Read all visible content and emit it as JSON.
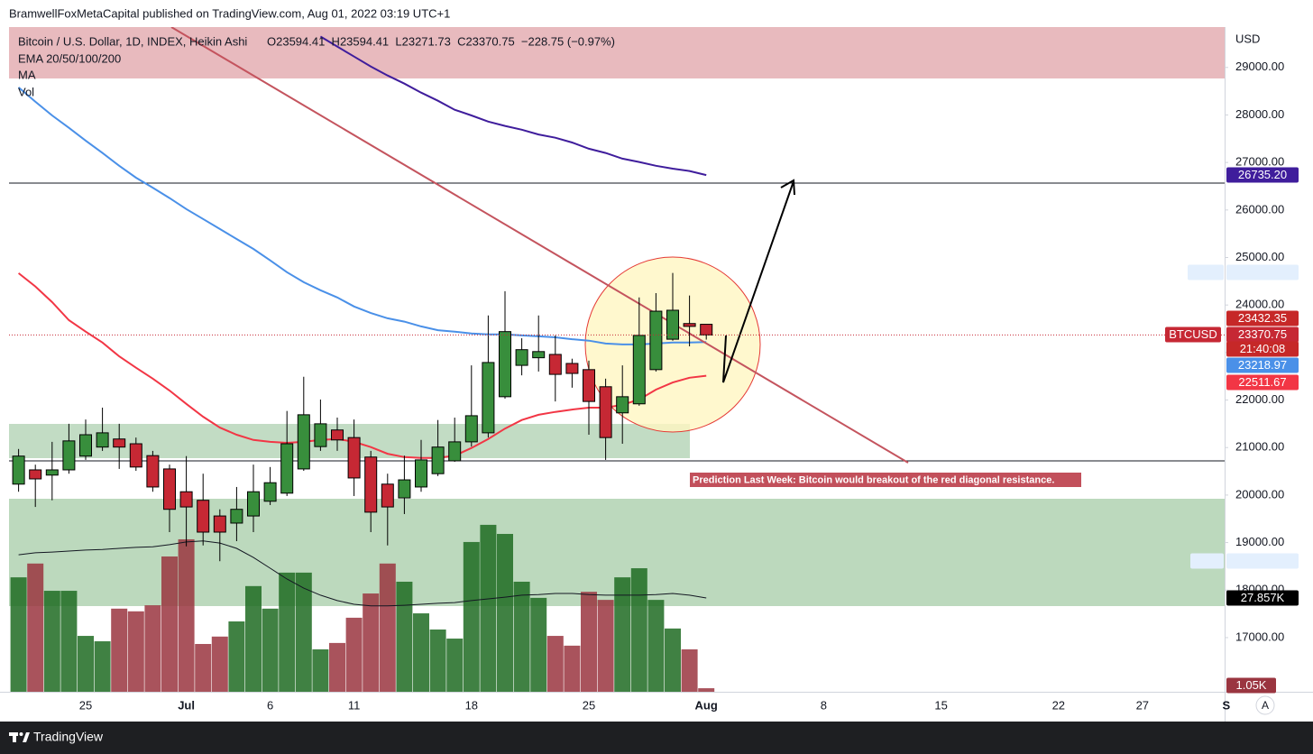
{
  "header": {
    "text": "BramwellFoxMetaCapital published on TradingView.com, Aug 01, 2022 03:19 UTC+1"
  },
  "footer": {
    "brand": "TradingView"
  },
  "chart_data": {
    "type": "candlestick",
    "legend": {
      "symbol": "Bitcoin / U.S. Dollar, 1D, INDEX, Heikin Ashi",
      "ohlc": "O23594.41  H23594.41  L23271.73  C23370.75  −228.75 (−0.97%)",
      "indicators": [
        "EMA 20/50/100/200",
        "MA",
        "Vol"
      ]
    },
    "currency": "USD",
    "annotation": "Prediction Last Week: Bitcoin would breakout of the red diagonal resistance.",
    "auto_button": "A",
    "symbol_tag": "BTCUSD",
    "close_label": "23370.75",
    "price_tags": [
      {
        "text": "23432.35",
        "color": "#c62828"
      },
      {
        "text": "21:40:08",
        "color": "#c62828"
      }
    ],
    "high": [
      20970,
      20640,
      21120,
      21500,
      21590,
      21840,
      21500,
      21210,
      20930,
      20640,
      20820,
      20450,
      19700,
      20170,
      20640,
      20590,
      21770,
      22490,
      22010,
      21630,
      21590,
      20930,
      20450,
      20830,
      21160,
      21580,
      21630,
      22730,
      23780,
      24290,
      23300,
      23780,
      23360,
      22870,
      22830,
      22450,
      22730,
      24160,
      24250,
      24675.03,
      24200,
      23594.41,
      null,
      null,
      null,
      null,
      null,
      null,
      null,
      null,
      null,
      null,
      null,
      null,
      null,
      null,
      null,
      null,
      null,
      null,
      null,
      null,
      null,
      null,
      null,
      null,
      null,
      null,
      null,
      null,
      null,
      null,
      null
    ],
    "low": [
      20070,
      19750,
      19890,
      20450,
      20740,
      20930,
      20550,
      20510,
      20070,
      19220,
      18920,
      18940,
      18608.03,
      19030,
      19220,
      19790,
      19980,
      20510,
      20930,
      20930,
      19980,
      19220,
      18940,
      19600,
      20070,
      20400,
      20700,
      21020,
      21210,
      22030,
      22520,
      22600,
      21970,
      22260,
      21270,
      20740,
      21080,
      21880,
      22600,
      23250,
      23130,
      23271.73,
      null,
      null,
      null,
      null,
      null,
      null,
      null,
      null,
      null,
      null,
      null,
      null,
      null,
      null,
      null,
      null,
      null,
      null,
      null,
      null,
      null,
      null,
      null,
      null,
      null,
      null,
      null,
      null,
      null,
      null,
      null
    ],
    "up_color": "#388e3c",
    "down_color": "#c62834",
    "categories": [
      null,
      null,
      null,
      null,
      "25",
      null,
      null,
      null,
      null,
      null,
      "Jul",
      null,
      null,
      null,
      null,
      "6",
      null,
      null,
      null,
      null,
      "11",
      null,
      null,
      null,
      null,
      null,
      null,
      "18",
      null,
      null,
      null,
      null,
      null,
      null,
      "25",
      null,
      null,
      null,
      null,
      null,
      null,
      "Aug",
      null,
      null,
      null,
      null,
      null,
      null,
      "8",
      null,
      null,
      null,
      null,
      null,
      null,
      "15",
      null,
      null,
      null,
      null,
      null,
      null,
      "22",
      null,
      null,
      null,
      null,
      "27",
      null,
      null,
      null,
      null,
      "S"
    ],
    "open": [
      20230,
      20530,
      20420,
      20530,
      20820,
      21010,
      21180,
      21080,
      20830,
      20550,
      20070,
      19890,
      19560,
      19410,
      19560,
      19870,
      20040,
      20550,
      21020,
      21370,
      21210,
      20800,
      20230,
      19940,
      20170,
      20450,
      20720,
      21120,
      21310,
      22070,
      22730,
      22890,
      22960,
      22770,
      22640,
      22280,
      21730,
      21920,
      22640,
      23280,
      23610,
      23594.41,
      null,
      null,
      null,
      null,
      null,
      null,
      null,
      null,
      null,
      null,
      null,
      null,
      null,
      null,
      null,
      null,
      null,
      null,
      null,
      null,
      null,
      null,
      null,
      null,
      null,
      null,
      null,
      null,
      null,
      null,
      null
    ],
    "close": [
      20820,
      20340,
      20530,
      21140,
      21270,
      21310,
      21010,
      20590,
      20170,
      19700,
      19750,
      19220,
      19220,
      19700,
      20070,
      20260,
      21080,
      21690,
      21500,
      21160,
      20360,
      19640,
      19750,
      20320,
      20740,
      21010,
      21120,
      21670,
      22790,
      23440,
      23060,
      23020,
      22540,
      22560,
      21970,
      21210,
      22070,
      23360,
      23870,
      23890,
      23550,
      23370.75,
      null,
      null,
      null,
      null,
      null,
      null,
      null,
      null,
      null,
      null,
      null,
      null,
      null,
      null,
      null,
      null,
      null,
      null,
      null,
      null,
      null,
      null,
      null,
      null,
      null,
      null,
      null,
      null,
      null,
      null,
      null
    ],
    "lines": [
      {
        "color": "#f23645",
        "last_label": "22511.67",
        "values": [
          24670,
          24390,
          24060,
          23680,
          23440,
          23210,
          22920,
          22680,
          22450,
          22200,
          21920,
          21650,
          21420,
          21270,
          21160,
          21120,
          21100,
          21120,
          21160,
          21180,
          21120,
          21010,
          20870,
          20800,
          20780,
          20780,
          20830,
          20990,
          21180,
          21400,
          21580,
          21690,
          21750,
          21800,
          21840,
          21840,
          21900,
          22010,
          22220,
          22370,
          22470,
          22511.67,
          null,
          null,
          null,
          null,
          null,
          null,
          null,
          null,
          null,
          null,
          null,
          null,
          null,
          null,
          null,
          null,
          null,
          null,
          null,
          null,
          null,
          null,
          null,
          null,
          null,
          null,
          null,
          null,
          null,
          null,
          null
        ]
      },
      {
        "color": "#4a90e8",
        "last_label": "23218.97",
        "values": [
          28580,
          28280,
          27990,
          27730,
          27460,
          27200,
          26930,
          26680,
          26470,
          26250,
          26020,
          25810,
          25600,
          25390,
          25180,
          24940,
          24690,
          24480,
          24310,
          24160,
          23970,
          23830,
          23720,
          23650,
          23550,
          23470,
          23440,
          23400,
          23380,
          23380,
          23360,
          23340,
          23320,
          23280,
          23250,
          23190,
          23170,
          23170,
          23190,
          23210,
          23210,
          23218.97,
          null,
          null,
          null,
          null,
          null,
          null,
          null,
          null,
          null,
          null,
          null,
          null,
          null,
          null,
          null,
          null,
          null,
          null,
          null,
          null,
          null,
          null,
          null,
          null,
          null,
          null,
          null,
          null,
          null,
          null,
          null
        ]
      },
      {
        "color": "#3f1d9c",
        "last_label": "26735.20",
        "values": [
          null,
          null,
          null,
          null,
          null,
          null,
          null,
          null,
          null,
          null,
          null,
          null,
          null,
          null,
          null,
          null,
          null,
          null,
          29650,
          29440,
          29230,
          29020,
          28830,
          28660,
          28470,
          28300,
          28110,
          27990,
          27860,
          27770,
          27690,
          27590,
          27520,
          27420,
          27290,
          27200,
          27080,
          27010,
          26930,
          26870,
          26820,
          26735.2,
          null,
          null,
          null,
          null,
          null,
          null,
          null,
          null,
          null,
          null,
          null,
          null,
          null,
          null,
          null,
          null,
          null,
          null,
          null,
          null,
          null,
          null,
          null,
          null,
          null,
          null,
          null,
          null,
          null,
          null,
          null
        ]
      }
    ],
    "volume": {
      "axis": "y2",
      "up_color": "#1f6b22",
      "down_color": "#9a3540",
      "last_label": "1.05K",
      "values": [
        34000,
        38100,
        30000,
        30000,
        16600,
        15000,
        24700,
        23900,
        25700,
        40200,
        45300,
        14200,
        16400,
        20900,
        31400,
        24700,
        35400,
        35400,
        12600,
        14500,
        22000,
        29200,
        38100,
        32700,
        23300,
        18500,
        15800,
        44500,
        49600,
        46900,
        32700,
        27900,
        16600,
        13700,
        29700,
        27300,
        34000,
        36700,
        27300,
        18800,
        12600,
        1050,
        null,
        null,
        null,
        null,
        null,
        null,
        null,
        null,
        null,
        null,
        null,
        null,
        null,
        null,
        null,
        null,
        null,
        null,
        null,
        null,
        null,
        null,
        null,
        null,
        null,
        null,
        null,
        null,
        null,
        null,
        null
      ]
    },
    "volume_ma": {
      "axis": "y2",
      "color": "#131722",
      "last_label": "27.857K",
      "values": [
        40700,
        41300,
        41500,
        41800,
        42100,
        42300,
        42600,
        42900,
        43100,
        43700,
        44500,
        44800,
        44200,
        42600,
        39900,
        36700,
        33500,
        30800,
        28700,
        27100,
        26000,
        25500,
        25500,
        25700,
        26000,
        26300,
        26500,
        27100,
        27600,
        28100,
        28700,
        28900,
        29200,
        29200,
        28900,
        28700,
        28700,
        28700,
        28900,
        29200,
        28700,
        27857,
        null,
        null,
        null,
        null,
        null,
        null,
        null,
        null,
        null,
        null,
        null,
        null,
        null,
        null,
        null,
        null,
        null,
        null,
        null,
        null,
        null,
        null,
        null,
        null,
        null,
        null,
        null,
        null,
        null,
        null,
        null
      ]
    },
    "ylim": [
      15860,
      29850
    ],
    "yticks": [
      {
        "value": 17000,
        "label": "17000.00"
      },
      {
        "value": 18000,
        "label": "18000.00"
      },
      {
        "value": 19000,
        "label": "19000.00"
      },
      {
        "value": 20000,
        "label": "20000.00"
      },
      {
        "value": 21000,
        "label": "21000.00"
      },
      {
        "value": 22000,
        "label": "22000.00"
      },
      {
        "value": 23000,
        "label": "23000.00"
      },
      {
        "value": 24000,
        "label": "24000.00"
      },
      {
        "value": 25000,
        "label": "25000.00"
      },
      {
        "value": 26000,
        "label": "26000.00"
      },
      {
        "value": 27000,
        "label": "27000.00"
      },
      {
        "value": 28000,
        "label": "28000.00"
      },
      {
        "value": 29000,
        "label": "29000.00"
      }
    ],
    "y2lim": [
      0,
      197500
    ],
    "grid": false
  }
}
